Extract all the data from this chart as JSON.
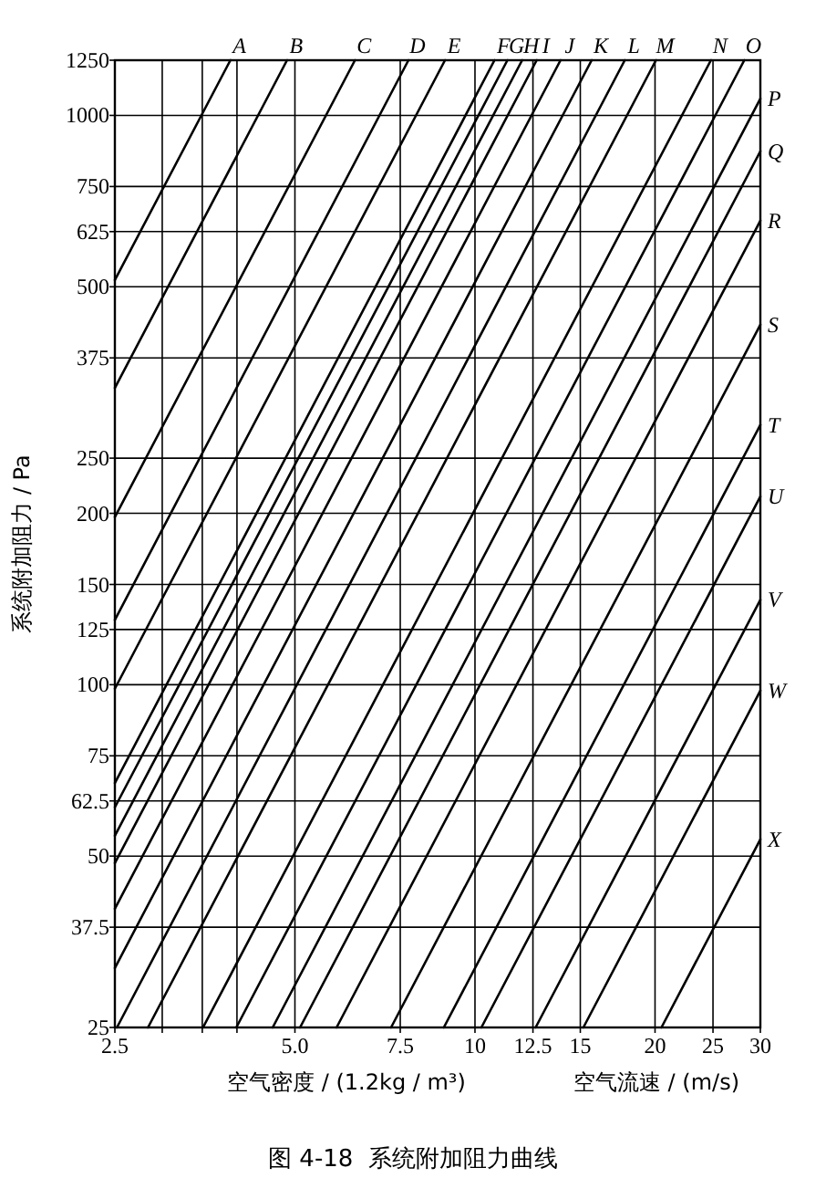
{
  "chart_data": {
    "type": "line",
    "title": "图 4-18  系统附加阻力曲线",
    "xlabel": "空气密度 / (1.2kg / m³)",
    "ylabel": "系统附加阻力 / Pa",
    "annotations": [
      "空气流速 / (m/s)"
    ],
    "log": "xy",
    "grid": true,
    "marker": "none",
    "line_style": "solid",
    "xlim": [
      2.5,
      30
    ],
    "ylim": [
      25,
      1250
    ],
    "xticks": [
      2.5,
      {
        "value": 3,
        "label": null
      },
      {
        "value": 3.5,
        "label": null
      },
      {
        "value": 4,
        "label": null
      },
      {
        "value": 5,
        "label": "5.0"
      },
      7.5,
      10,
      12.5,
      15,
      20,
      25,
      30
    ],
    "yticks": [
      25,
      37.5,
      50,
      62.5,
      75,
      100,
      125,
      150,
      200,
      250,
      375,
      500,
      625,
      750,
      1000,
      1250
    ],
    "series": [
      {
        "name": "A",
        "color": "#000000",
        "x": [
          2.5,
          3.9
        ],
        "values": [
          514,
          1250
        ]
      },
      {
        "name": "B",
        "color": "#000000",
        "x": [
          2.5,
          4.85
        ],
        "values": [
          332,
          1250
        ]
      },
      {
        "name": "C",
        "color": "#000000",
        "x": [
          2.5,
          6.3
        ],
        "values": [
          197,
          1250
        ]
      },
      {
        "name": "D",
        "color": "#000000",
        "x": [
          2.5,
          7.74
        ],
        "values": [
          130,
          1250
        ]
      },
      {
        "name": "E",
        "color": "#000000",
        "x": [
          2.5,
          8.91
        ],
        "values": [
          98.4,
          1250
        ]
      },
      {
        "name": "F",
        "color": "#000000",
        "x": [
          2.5,
          10.78
        ],
        "values": [
          67.2,
          1250
        ]
      },
      {
        "name": "G",
        "color": "#000000",
        "x": [
          2.5,
          11.33
        ],
        "values": [
          60.9,
          1250
        ]
      },
      {
        "name": "H",
        "color": "#000000",
        "x": [
          2.5,
          11.99
        ],
        "values": [
          54.3,
          1250
        ]
      },
      {
        "name": "I",
        "color": "#000000",
        "x": [
          2.5,
          12.68
        ],
        "values": [
          48.6,
          1250
        ]
      },
      {
        "name": "J",
        "color": "#000000",
        "x": [
          2.5,
          13.9
        ],
        "values": [
          40.4,
          1250
        ]
      },
      {
        "name": "K",
        "color": "#000000",
        "x": [
          2.5,
          15.67
        ],
        "values": [
          31.8,
          1250
        ]
      },
      {
        "name": "L",
        "color": "#000000",
        "x": [
          2.52,
          17.8
        ],
        "values": [
          25,
          1250
        ]
      },
      {
        "name": "M",
        "color": "#000000",
        "x": [
          2.84,
          20.07
        ],
        "values": [
          25,
          1250
        ]
      },
      {
        "name": "N",
        "color": "#000000",
        "x": [
          3.51,
          24.8
        ],
        "values": [
          25,
          1250
        ]
      },
      {
        "name": "O",
        "color": "#000000",
        "x": [
          3.99,
          28.2
        ],
        "values": [
          25,
          1250
        ]
      },
      {
        "name": "P",
        "color": "#000000",
        "x": [
          4.59,
          30
        ],
        "values": [
          25,
          1070
        ]
      },
      {
        "name": "Q",
        "color": "#000000",
        "x": [
          5.1,
          30
        ],
        "values": [
          25,
          865
        ]
      },
      {
        "name": "R",
        "color": "#000000",
        "x": [
          5.87,
          30
        ],
        "values": [
          25,
          653
        ]
      },
      {
        "name": "S",
        "color": "#000000",
        "x": [
          7.24,
          30
        ],
        "values": [
          25,
          429
        ]
      },
      {
        "name": "T",
        "color": "#000000",
        "x": [
          8.87,
          30
        ],
        "values": [
          25,
          286
        ]
      },
      {
        "name": "U",
        "color": "#000000",
        "x": [
          10.25,
          30
        ],
        "values": [
          25,
          214
        ]
      },
      {
        "name": "V",
        "color": "#000000",
        "x": [
          12.63,
          30
        ],
        "values": [
          25,
          141
        ]
      },
      {
        "name": "W",
        "color": "#000000",
        "x": [
          15.18,
          30
        ],
        "values": [
          25,
          97.6
        ]
      },
      {
        "name": "X",
        "color": "#000000",
        "x": [
          20.5,
          30
        ],
        "values": [
          25,
          53.5
        ]
      }
    ]
  }
}
